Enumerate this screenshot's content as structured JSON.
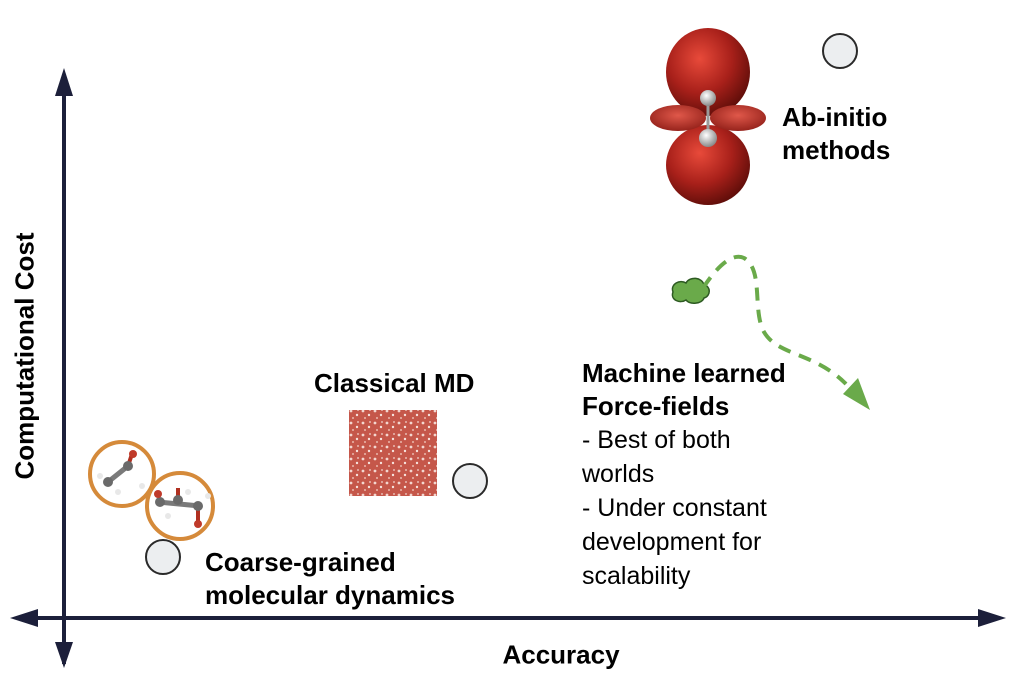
{
  "axes": {
    "x_label": "Accuracy",
    "y_label": "Computational Cost"
  },
  "methods": {
    "coarse_grained": {
      "lines": [
        "Coarse-grained",
        "molecular dynamics"
      ]
    },
    "classical_md": {
      "title": "Classical MD"
    },
    "ab_initio": {
      "lines": [
        "Ab-initio",
        "methods"
      ]
    },
    "ml_force_fields": {
      "title_lines": [
        "Machine learned",
        "Force-fields"
      ],
      "bullet_lines": [
        "- Best of both",
        "worlds",
        "- Under constant",
        "development for",
        "scalability"
      ]
    }
  },
  "colors": {
    "axis": "#1c1f3a",
    "marker_fill": "#eceef0",
    "marker_stroke": "#2a2a2a",
    "molecule_ring": "#d58a3a",
    "orbital_red": "#9c1c12",
    "md_box": "#c86a5c",
    "ml_path": "#6aaa4a"
  },
  "icons": [
    "molecule-icon",
    "orbital-icon",
    "md-box-icon",
    "cloud-icon",
    "marker-icon"
  ]
}
